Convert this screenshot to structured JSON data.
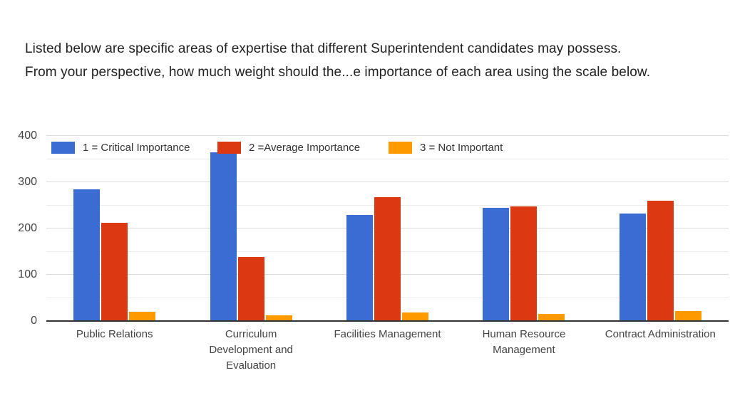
{
  "title": {
    "line1": "Listed below are specific areas of expertise that different Superintendent candidates may possess.",
    "line2": "From your perspective, how much weight should the...e importance of each area using the scale below."
  },
  "chart_data": {
    "type": "bar",
    "title": "Listed below are specific areas of expertise that different Superintendent candidates may possess. From your perspective, how much weight should the...e importance of each area using the scale below.",
    "categories": [
      "Public Relations",
      "Curriculum Development and Evaluation",
      "Facilities Management",
      "Human Resource Management",
      "Contract Administration"
    ],
    "category_label_lines": [
      [
        "Public Relations"
      ],
      [
        "Curriculum",
        "Development and",
        "Evaluation"
      ],
      [
        "Facilities Management"
      ],
      [
        "Human Resource",
        "Management"
      ],
      [
        "Contract Administration"
      ]
    ],
    "series": [
      {
        "name": "1 = Critical Importance",
        "color": "#3b6cd3",
        "values": [
          285,
          365,
          230,
          245,
          232
        ]
      },
      {
        "name": "2 =Average Importance",
        "color": "#dc3912",
        "values": [
          213,
          138,
          268,
          247,
          260
        ]
      },
      {
        "name": "3 = Not Important",
        "color": "#ff9900",
        "values": [
          20,
          13,
          18,
          15,
          22
        ]
      }
    ],
    "xlabel": "",
    "ylabel": "",
    "ylim": [
      0,
      400
    ],
    "yticks": [
      0,
      100,
      200,
      300,
      400
    ],
    "minor_grid_step": 50,
    "grid": true,
    "legend_position": "top-left-inside",
    "colors": {
      "axis_line": "#333333",
      "major_grid": "#dcdcdc",
      "minor_grid": "#ececec",
      "tick_label": "#444444",
      "title_text": "#212121"
    }
  }
}
